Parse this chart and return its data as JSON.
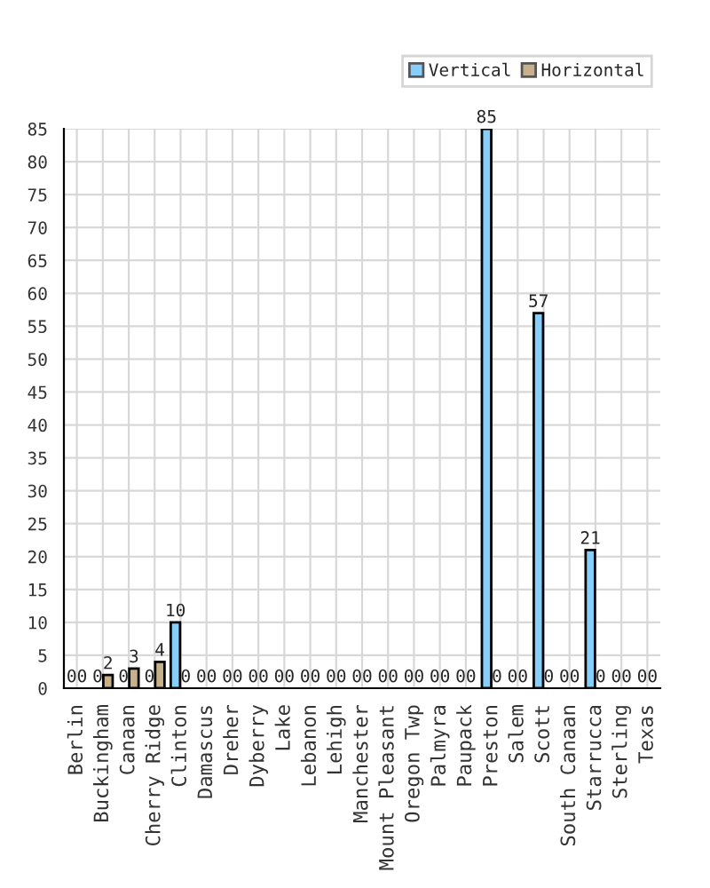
{
  "chart_data": {
    "type": "bar",
    "categories": [
      "Berlin",
      "Buckingham",
      "Canaan",
      "Cherry Ridge",
      "Clinton",
      "Damascus",
      "Dreher",
      "Dyberry",
      "Lake",
      "Lebanon",
      "Lehigh",
      "Manchester",
      "Mount Pleasant",
      "Oregon Twp",
      "Palmyra",
      "Paupack",
      "Preston",
      "Salem",
      "Scott",
      "South Canaan",
      "Starrucca",
      "Sterling",
      "Texas"
    ],
    "series": [
      {
        "name": "Vertical",
        "color": "#87cefa",
        "values": [
          0,
          0,
          0,
          0,
          10,
          0,
          0,
          0,
          0,
          0,
          0,
          0,
          0,
          0,
          0,
          0,
          85,
          0,
          57,
          0,
          21,
          0,
          0
        ]
      },
      {
        "name": "Horizontal",
        "color": "#c8b08c",
        "values": [
          0,
          2,
          3,
          4,
          0,
          0,
          0,
          0,
          0,
          0,
          0,
          0,
          0,
          0,
          0,
          0,
          0,
          0,
          0,
          0,
          0,
          0,
          0
        ]
      }
    ],
    "ylim": [
      0,
      85
    ],
    "yticks": [
      0,
      5,
      10,
      15,
      20,
      25,
      30,
      35,
      40,
      45,
      50,
      55,
      60,
      65,
      70,
      75,
      80,
      85
    ],
    "grid": true,
    "legend": "top right",
    "data_labels": true
  }
}
